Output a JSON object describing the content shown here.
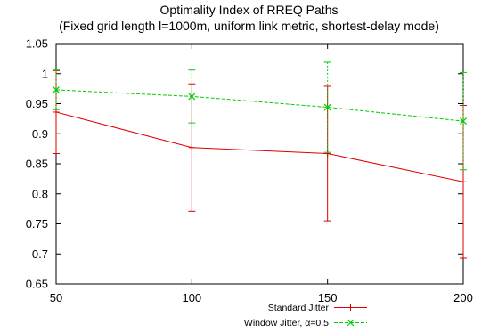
{
  "chart_data": {
    "type": "line",
    "title": "Optimality Index of RREQ Paths",
    "subtitle": "(Fixed grid length l=1000m, uniform link metric, shortest-delay mode)",
    "xlabel": "",
    "ylabel": "",
    "x": [
      50,
      100,
      150,
      200
    ],
    "x_ticks": [
      "50",
      "100",
      "150",
      "200"
    ],
    "xlim": [
      50,
      200
    ],
    "y_ticks": [
      "0.65",
      "0.7",
      "0.75",
      "0.8",
      "0.85",
      "0.9",
      "0.95",
      "1",
      "1.05"
    ],
    "ylim": [
      0.65,
      1.05
    ],
    "grid": false,
    "legend_position": "bottom-right",
    "series": [
      {
        "name": "Standard Jitter",
        "color": "#e00000",
        "line_style": "solid",
        "marker": "plus",
        "values": [
          0.936,
          0.877,
          0.867,
          0.82
        ],
        "err_low": [
          0.867,
          0.771,
          0.755,
          0.693
        ],
        "err_high": [
          1.005,
          0.983,
          0.979,
          0.947
        ]
      },
      {
        "name": "Window Jitter, α=0.5",
        "color": "#00cc00",
        "line_style": "dashed",
        "marker": "x",
        "values": [
          0.973,
          0.962,
          0.944,
          0.921
        ],
        "err_low": [
          0.94,
          0.918,
          0.869,
          0.84
        ],
        "err_high": [
          1.006,
          1.006,
          1.019,
          1.002
        ]
      }
    ]
  }
}
